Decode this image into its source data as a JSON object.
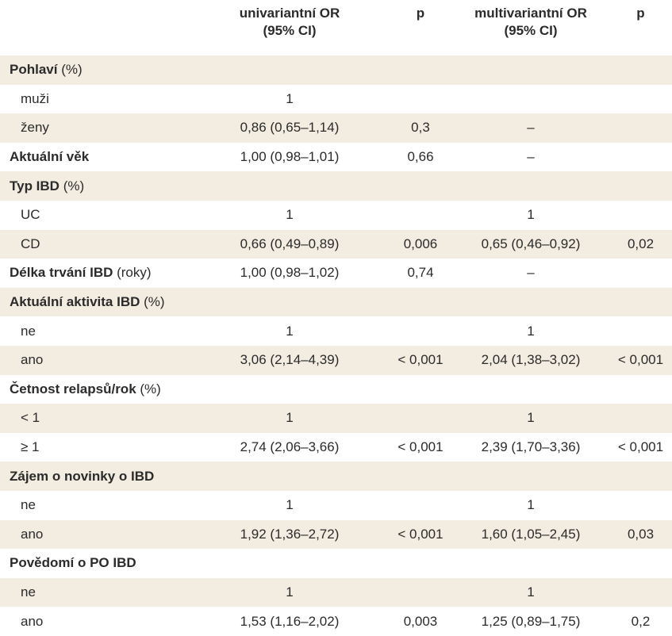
{
  "table": {
    "headers": [
      {
        "line1": "",
        "line2": ""
      },
      {
        "line1": "univariantní OR",
        "line2": "(95% CI)"
      },
      {
        "line1": "p",
        "line2": ""
      },
      {
        "line1": "multivariantní OR",
        "line2": "(95% CI)"
      },
      {
        "line1": "p",
        "line2": ""
      }
    ],
    "rows": [
      {
        "type": "group",
        "label": "Pohlaví",
        "label_suffix": " (%)",
        "cells": [
          "",
          "",
          "",
          ""
        ]
      },
      {
        "type": "sub",
        "label": "muži",
        "label_suffix": "",
        "cells": [
          "1",
          "",
          "",
          ""
        ]
      },
      {
        "type": "sub",
        "label": "ženy",
        "label_suffix": "",
        "cells": [
          "0,86 (0,65–1,14)",
          "0,3",
          "–",
          ""
        ]
      },
      {
        "type": "group",
        "label": "Aktuální věk",
        "label_suffix": "",
        "cells": [
          "1,00 (0,98–1,01)",
          "0,66",
          "–",
          ""
        ]
      },
      {
        "type": "group",
        "label": "Typ IBD",
        "label_suffix": " (%)",
        "cells": [
          "",
          "",
          "",
          ""
        ]
      },
      {
        "type": "sub",
        "label": "UC",
        "label_suffix": "",
        "cells": [
          "1",
          "",
          "1",
          ""
        ]
      },
      {
        "type": "sub",
        "label": "CD",
        "label_suffix": "",
        "cells": [
          "0,66 (0,49–0,89)",
          "0,006",
          "0,65 (0,46–0,92)",
          "0,02"
        ]
      },
      {
        "type": "group",
        "label": "Délka trvání IBD",
        "label_suffix": " (roky)",
        "cells": [
          "1,00 (0,98–1,02)",
          "0,74",
          "–",
          ""
        ]
      },
      {
        "type": "group",
        "label": "Aktuální aktivita IBD",
        "label_suffix": " (%)",
        "cells": [
          "",
          "",
          "",
          ""
        ]
      },
      {
        "type": "sub",
        "label": "ne",
        "label_suffix": "",
        "cells": [
          "1",
          "",
          "1",
          ""
        ]
      },
      {
        "type": "sub",
        "label": "ano",
        "label_suffix": "",
        "cells": [
          "3,06 (2,14–4,39)",
          "< 0,001",
          "2,04 (1,38–3,02)",
          "< 0,001"
        ]
      },
      {
        "type": "group",
        "label": "Četnost relapsů/rok",
        "label_suffix": " (%)",
        "cells": [
          "",
          "",
          "",
          ""
        ]
      },
      {
        "type": "sub",
        "label": "< 1",
        "label_suffix": "",
        "cells": [
          "1",
          "",
          "1",
          ""
        ]
      },
      {
        "type": "sub",
        "label": "≥ 1",
        "label_suffix": "",
        "cells": [
          "2,74 (2,06–3,66)",
          "< 0,001",
          "2,39 (1,70–3,36)",
          "< 0,001"
        ]
      },
      {
        "type": "group",
        "label": "Zájem o novinky o IBD",
        "label_suffix": "",
        "cells": [
          "",
          "",
          "",
          ""
        ]
      },
      {
        "type": "sub",
        "label": "ne",
        "label_suffix": "",
        "cells": [
          "1",
          "",
          "1",
          ""
        ]
      },
      {
        "type": "sub",
        "label": "ano",
        "label_suffix": "",
        "cells": [
          "1,92 (1,36–2,72)",
          "< 0,001",
          "1,60 (1,05–2,45)",
          "0,03"
        ]
      },
      {
        "type": "group",
        "label": "Povědomí o PO IBD",
        "label_suffix": "",
        "cells": [
          "",
          "",
          "",
          ""
        ]
      },
      {
        "type": "sub",
        "label": "ne",
        "label_suffix": "",
        "cells": [
          "1",
          "",
          "1",
          ""
        ]
      },
      {
        "type": "sub",
        "label": "ano",
        "label_suffix": "",
        "cells": [
          "1,53 (1,16–2,02)",
          "0,003",
          "1,25 (0,89–1,75)",
          "0,2"
        ]
      }
    ]
  }
}
